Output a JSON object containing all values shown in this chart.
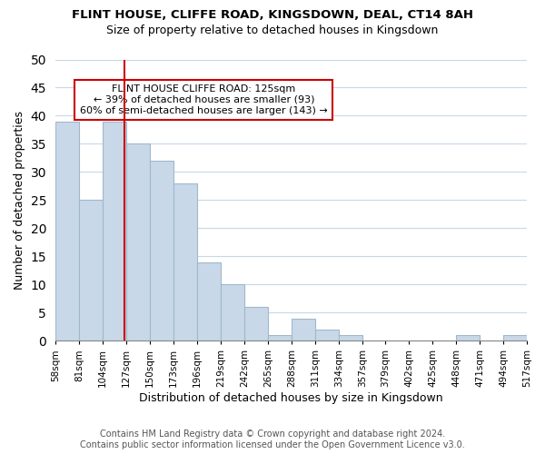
{
  "title": "FLINT HOUSE, CLIFFE ROAD, KINGSDOWN, DEAL, CT14 8AH",
  "subtitle": "Size of property relative to detached houses in Kingsdown",
  "xlabel": "Distribution of detached houses by size in Kingsdown",
  "ylabel": "Number of detached properties",
  "bar_color": "#c8d8e8",
  "bar_edge_color": "#a0b8cc",
  "reference_line_x": 125,
  "reference_line_color": "#cc0000",
  "bin_edges": [
    58,
    81,
    104,
    127,
    150,
    173,
    196,
    219,
    242,
    265,
    288,
    311,
    334,
    357,
    379,
    402,
    425,
    448,
    471,
    494,
    517
  ],
  "bin_labels": [
    "58sqm",
    "81sqm",
    "104sqm",
    "127sqm",
    "150sqm",
    "173sqm",
    "196sqm",
    "219sqm",
    "242sqm",
    "265sqm",
    "288sqm",
    "311sqm",
    "334sqm",
    "357sqm",
    "379sqm",
    "402sqm",
    "425sqm",
    "448sqm",
    "471sqm",
    "494sqm",
    "517sqm"
  ],
  "bar_heights": [
    39,
    25,
    39,
    35,
    32,
    28,
    14,
    10,
    6,
    1,
    4,
    2,
    1,
    0,
    0,
    0,
    0,
    1,
    0,
    1
  ],
  "ylim": [
    0,
    50
  ],
  "yticks": [
    0,
    5,
    10,
    15,
    20,
    25,
    30,
    35,
    40,
    45,
    50
  ],
  "annotation_title": "FLINT HOUSE CLIFFE ROAD: 125sqm",
  "annotation_line1": "← 39% of detached houses are smaller (93)",
  "annotation_line2": "60% of semi-detached houses are larger (143) →",
  "annotation_box_color": "#ffffff",
  "annotation_border_color": "#cc0000",
  "footer_line1": "Contains HM Land Registry data © Crown copyright and database right 2024.",
  "footer_line2": "Contains public sector information licensed under the Open Government Licence v3.0.",
  "bg_color": "#ffffff",
  "grid_color": "#c8d8e8"
}
